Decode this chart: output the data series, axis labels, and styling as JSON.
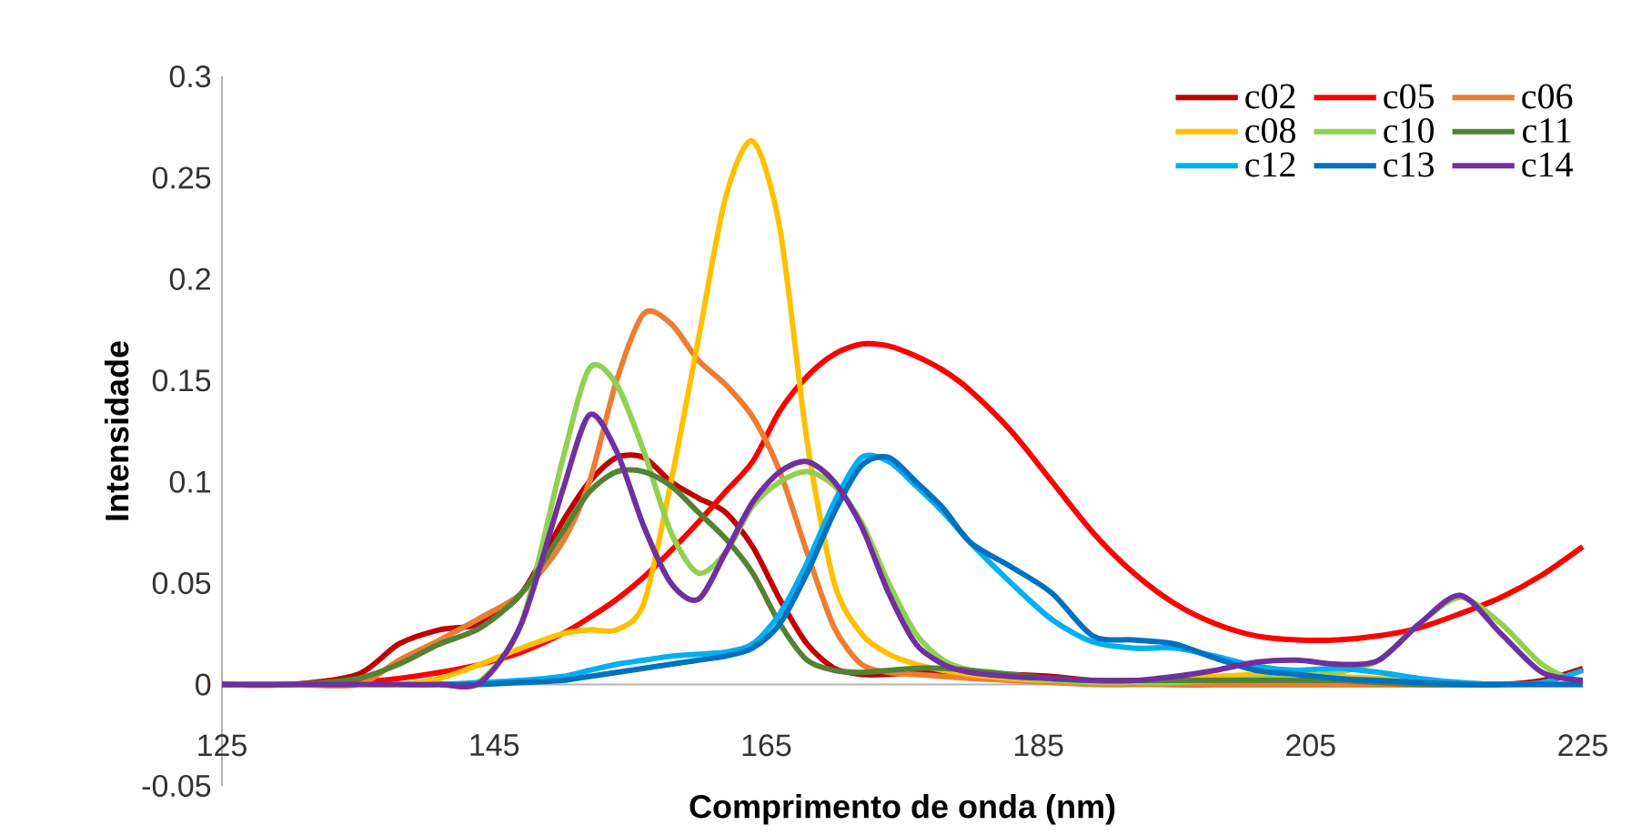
{
  "chart_data": {
    "type": "line",
    "xlabel": "Comprimento de onda (nm)",
    "ylabel": "Intensidade",
    "xlim": [
      125,
      225
    ],
    "ylim": [
      -0.05,
      0.3
    ],
    "xticks": [
      125,
      145,
      165,
      185,
      205,
      225
    ],
    "yticks": [
      -0.05,
      0,
      0.05,
      0.1,
      0.15,
      0.2,
      0.25,
      0.3
    ],
    "legend": "top right",
    "line_style": "solid",
    "x": [
      125,
      130,
      135,
      138,
      141,
      144,
      147,
      150,
      152,
      154,
      156,
      158,
      160,
      162,
      164,
      166,
      168,
      170,
      172,
      174,
      176,
      178,
      180,
      183,
      186,
      189,
      192,
      195,
      198,
      201,
      204,
      207,
      210,
      213,
      216,
      219,
      222,
      225
    ],
    "series": [
      {
        "name": "c02",
        "color": "#c00000",
        "values": [
          0,
          0,
          0.005,
          0.02,
          0.027,
          0.03,
          0.045,
          0.08,
          0.1,
          0.112,
          0.112,
          0.1,
          0.092,
          0.085,
          0.068,
          0.042,
          0.02,
          0.008,
          0.005,
          0.005,
          0.006,
          0.006,
          0.006,
          0.005,
          0.004,
          0.002,
          0.001,
          0,
          0,
          0,
          0,
          0,
          0,
          0,
          0,
          0,
          0.002,
          0.008
        ]
      },
      {
        "name": "c05",
        "color": "#ff0000",
        "values": [
          0,
          0,
          0.001,
          0.003,
          0.006,
          0.01,
          0.016,
          0.025,
          0.033,
          0.042,
          0.053,
          0.066,
          0.08,
          0.095,
          0.11,
          0.135,
          0.152,
          0.163,
          0.168,
          0.167,
          0.162,
          0.155,
          0.145,
          0.125,
          0.1,
          0.075,
          0.055,
          0.04,
          0.03,
          0.024,
          0.022,
          0.022,
          0.024,
          0.028,
          0.035,
          0.043,
          0.054,
          0.068
        ]
      },
      {
        "name": "c06",
        "color": "#ed7d31",
        "values": [
          0,
          0,
          0,
          0.012,
          0.022,
          0.033,
          0.045,
          0.07,
          0.1,
          0.15,
          0.183,
          0.178,
          0.16,
          0.148,
          0.132,
          0.105,
          0.065,
          0.028,
          0.01,
          0.006,
          0.005,
          0.004,
          0.003,
          0.002,
          0.001,
          0,
          0,
          0,
          0,
          0,
          0,
          0,
          0,
          0,
          0,
          0,
          0,
          0
        ]
      },
      {
        "name": "c08",
        "color": "#ffc000",
        "values": [
          null,
          null,
          0,
          0,
          0.003,
          0.01,
          0.018,
          0.025,
          0.027,
          0.027,
          0.04,
          0.1,
          0.17,
          0.24,
          0.268,
          0.225,
          0.12,
          0.05,
          0.025,
          0.015,
          0.01,
          0.007,
          0.005,
          0.003,
          0.002,
          0.002,
          0.002,
          0.003,
          0.004,
          0.005,
          0.005,
          0.004,
          0.003,
          0.002,
          null,
          null,
          null,
          null
        ]
      },
      {
        "name": "c10",
        "color": "#92d050",
        "values": [
          null,
          null,
          null,
          null,
          0,
          0.002,
          0.03,
          0.11,
          0.156,
          0.148,
          0.115,
          0.075,
          0.055,
          0.065,
          0.088,
          0.1,
          0.105,
          0.098,
          0.08,
          0.05,
          0.025,
          0.012,
          0.007,
          0.004,
          0.002,
          0.001,
          0.001,
          0.001,
          0.002,
          0.003,
          0.004,
          0.006,
          0.012,
          0.03,
          0.043,
          0.03,
          0.01,
          0
        ]
      },
      {
        "name": "c11",
        "color": "#548235",
        "values": [
          0,
          0,
          0.003,
          0.01,
          0.02,
          0.028,
          0.045,
          0.075,
          0.095,
          0.105,
          0.105,
          0.098,
          0.085,
          0.072,
          0.055,
          0.03,
          0.012,
          0.007,
          0.006,
          0.007,
          0.008,
          0.008,
          0.007,
          0.005,
          0.003,
          0.002,
          0.002,
          0.002,
          0.002,
          0.002,
          0.002,
          0.002,
          0.001,
          0,
          0,
          0,
          null,
          null
        ]
      },
      {
        "name": "c12",
        "color": "#00b0f0",
        "values": [
          null,
          null,
          null,
          0,
          0,
          0.001,
          0.002,
          0.004,
          0.007,
          0.01,
          0.012,
          0.014,
          0.015,
          0.016,
          0.02,
          0.035,
          0.06,
          0.09,
          0.112,
          0.11,
          0.098,
          0.085,
          0.07,
          0.05,
          0.032,
          0.021,
          0.018,
          0.018,
          0.014,
          0.009,
          0.007,
          0.008,
          0.006,
          0.003,
          0.001,
          0,
          0.001,
          0.007
        ]
      },
      {
        "name": "c13",
        "color": "#0070c0",
        "values": [
          null,
          null,
          null,
          null,
          0,
          0,
          0.001,
          0.002,
          0.004,
          0.006,
          0.008,
          0.01,
          0.012,
          0.014,
          0.018,
          0.03,
          0.055,
          0.085,
          0.108,
          0.112,
          0.1,
          0.087,
          0.07,
          0.058,
          0.045,
          0.024,
          0.022,
          0.02,
          0.013,
          0.007,
          0.005,
          0.003,
          0.002,
          0.001,
          0,
          0,
          0,
          0
        ]
      },
      {
        "name": "c14",
        "color": "#7030a0",
        "values": [
          0,
          0,
          0,
          0,
          0,
          0.001,
          0.03,
          0.095,
          0.133,
          0.115,
          0.078,
          0.05,
          0.042,
          0.065,
          0.09,
          0.105,
          0.11,
          0.1,
          0.078,
          0.045,
          0.02,
          0.01,
          0.006,
          0.004,
          0.003,
          0.002,
          0.002,
          0.004,
          0.007,
          0.011,
          0.012,
          0.01,
          0.012,
          0.03,
          0.044,
          0.025,
          0.006,
          0.002
        ]
      }
    ]
  }
}
